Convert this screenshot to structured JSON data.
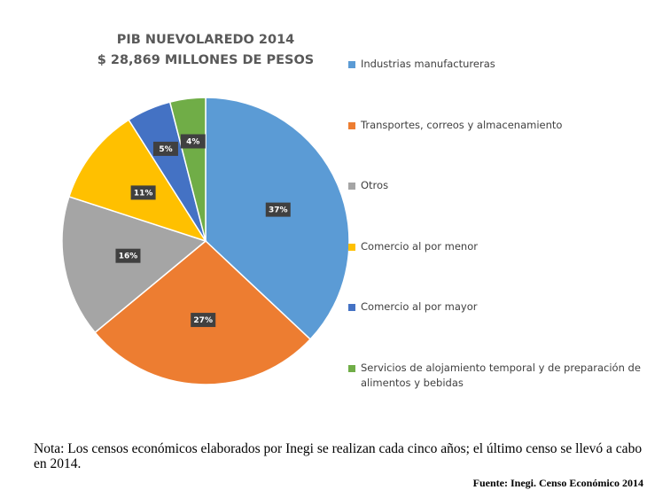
{
  "chart_data": {
    "type": "pie",
    "title": "PIB NUEVOLAREDO 2014",
    "subtitle": "$ 28,869  MILLONES DE PESOS",
    "categories": [
      "Industrias manufactureras",
      "Transportes, correos y almacenamiento",
      "Otros",
      "Comercio al por menor",
      "Comercio al por mayor",
      "Servicios de alojamiento temporal y de preparación de alimentos y bebidas"
    ],
    "values": [
      37,
      27,
      16,
      11,
      5,
      4
    ],
    "value_labels": [
      "37%",
      "27%",
      "16%",
      "11%",
      "5%",
      "4%"
    ],
    "colors": [
      "#5b9bd5",
      "#ed7d31",
      "#a5a5a5",
      "#ffc000",
      "#4472c4",
      "#70ad47"
    ],
    "legend": "right",
    "note": "Nota: Los censos económicos elaborados por Inegi se realizan cada cinco años; el último censo se llevó a cabo en 2014.",
    "source": "Fuente: Inegi. Censo Económico 2014"
  }
}
